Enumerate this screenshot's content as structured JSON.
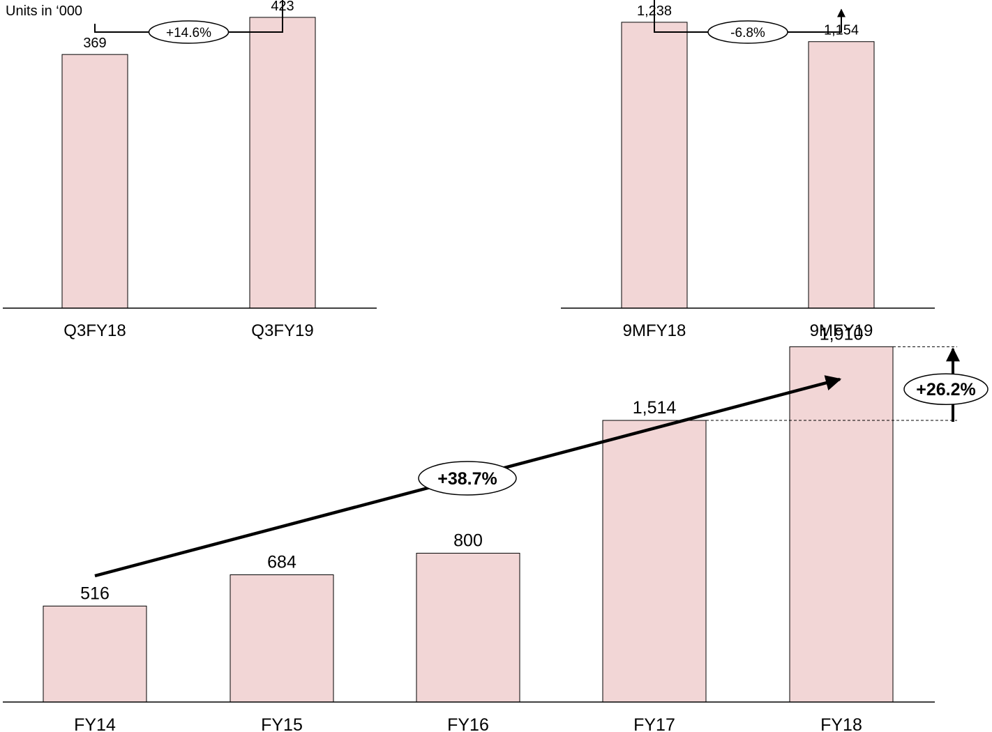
{
  "units_label": "Units in ‘000",
  "colors": {
    "bar_fill": "#f2d6d6",
    "bar_stroke": "#000000",
    "axis": "#000000",
    "arrow": "#000000"
  },
  "chart_data": [
    {
      "type": "bar",
      "categories": [
        "Q3FY18",
        "Q3FY19"
      ],
      "values": [
        369,
        423
      ],
      "value_labels": [
        "369",
        "423"
      ],
      "ylim": [
        0,
        430
      ],
      "annotation": {
        "text": "+14.6%",
        "from": "Q3FY18",
        "to": "Q3FY19",
        "style": "bracket-arrow"
      }
    },
    {
      "type": "bar",
      "categories": [
        "9MFY18",
        "9MFY19"
      ],
      "values": [
        1238,
        1154
      ],
      "value_labels": [
        "1,238",
        "1,154"
      ],
      "ylim": [
        0,
        1280
      ],
      "annotation": {
        "text": "-6.8%",
        "from": "9MFY18",
        "to": "9MFY19",
        "style": "bracket-arrow"
      }
    },
    {
      "type": "bar",
      "categories": [
        "FY14",
        "FY15",
        "FY16",
        "FY17",
        "FY18"
      ],
      "values": [
        516,
        684,
        800,
        1514,
        1910
      ],
      "value_labels": [
        "516",
        "684",
        "800",
        "1,514",
        "1,910"
      ],
      "ylim": [
        0,
        2080
      ],
      "annotations": [
        {
          "text": "+38.7%",
          "style": "trend-arrow",
          "from": "FY14",
          "to": "FY18"
        },
        {
          "text": "+26.2%",
          "style": "delta-arrow",
          "from": "FY17",
          "to": "FY18"
        }
      ]
    }
  ]
}
